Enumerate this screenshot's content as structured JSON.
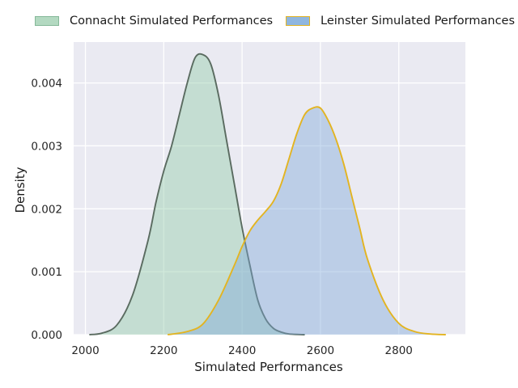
{
  "chart_data": {
    "type": "area",
    "title": "",
    "xlabel": "Simulated Performances",
    "ylabel": "Density",
    "xlim": [
      1970,
      2970
    ],
    "ylim": [
      0,
      0.00465
    ],
    "x_ticks": [
      2000,
      2200,
      2400,
      2600,
      2800
    ],
    "x_tick_labels": [
      "2000",
      "2200",
      "2400",
      "2600",
      "2800"
    ],
    "y_ticks": [
      0,
      0.001,
      0.002,
      0.003,
      0.004
    ],
    "y_tick_labels": [
      "0.000",
      "0.001",
      "0.002",
      "0.003",
      "0.004"
    ],
    "grid": true,
    "legend_position": "top",
    "series": [
      {
        "name": "Connacht Simulated Performances",
        "fill": "#8fcaa6",
        "line": "#5a6b60",
        "x": [
          2010,
          2040,
          2080,
          2120,
          2160,
          2180,
          2200,
          2220,
          2240,
          2260,
          2280,
          2300,
          2320,
          2340,
          2360,
          2380,
          2400,
          2420,
          2440,
          2460,
          2480,
          2500,
          2520,
          2560
        ],
        "y": [
          0.0,
          2e-05,
          0.00015,
          0.00062,
          0.0015,
          0.0021,
          0.0026,
          0.003,
          0.0035,
          0.004,
          0.0044,
          0.00445,
          0.0043,
          0.0038,
          0.0031,
          0.0024,
          0.0017,
          0.0011,
          0.00055,
          0.00025,
          0.0001,
          4e-05,
          1e-05,
          0.0
        ]
      },
      {
        "name": "Leinster Simulated Performances",
        "fill": "#7ba7d8",
        "line": "#e3b421",
        "x": [
          2210,
          2260,
          2300,
          2340,
          2380,
          2400,
          2420,
          2440,
          2460,
          2480,
          2500,
          2520,
          2540,
          2560,
          2580,
          2600,
          2620,
          2640,
          2660,
          2680,
          2700,
          2720,
          2760,
          2800,
          2840,
          2880,
          2920
        ],
        "y": [
          0.0,
          5e-05,
          0.00017,
          0.00055,
          0.0011,
          0.0014,
          0.00165,
          0.00182,
          0.00196,
          0.00212,
          0.0024,
          0.0028,
          0.0032,
          0.0035,
          0.0036,
          0.0036,
          0.0034,
          0.0031,
          0.0027,
          0.0022,
          0.0017,
          0.0012,
          0.00055,
          0.00018,
          5e-05,
          1e-05,
          0.0
        ]
      }
    ]
  }
}
